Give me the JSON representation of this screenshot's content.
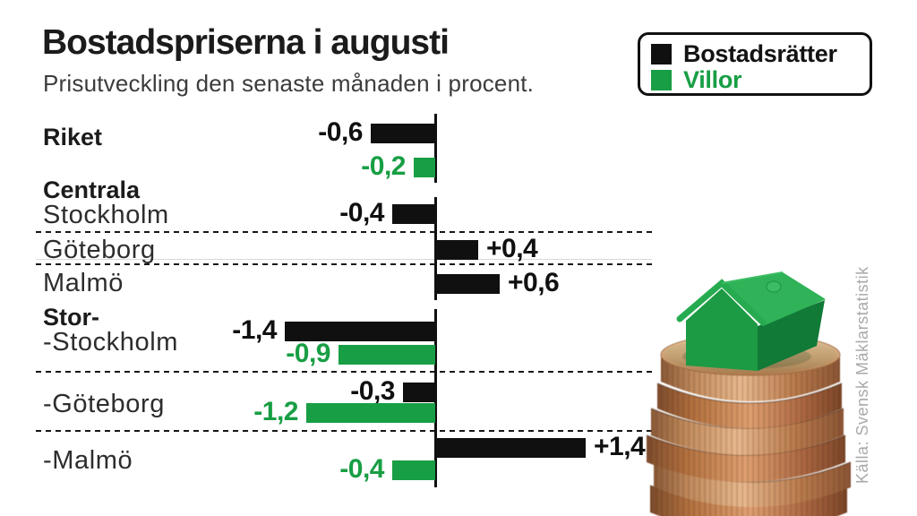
{
  "title": "Bostadspriserna i augusti",
  "subtitle": "Prisutveckling den senaste månaden i procent.",
  "legend": {
    "items": [
      {
        "label": "Bostadsrätter",
        "color": "#101010"
      },
      {
        "label": "Villor",
        "color": "#189e44"
      }
    ]
  },
  "source": "Källa: Svensk Mäklarstatistik",
  "illustration": "green toy house on a stack of copper coins",
  "chart_data": {
    "type": "bar",
    "orientation": "horizontal",
    "value_unit": "percent, change over last month",
    "xlim": [
      -1.5,
      1.5
    ],
    "grid": "dashed row separators",
    "legend_position": "top-right",
    "series": [
      {
        "name": "Bostadsrätter",
        "color": "#101010"
      },
      {
        "name": "Villor",
        "color": "#189e44"
      }
    ],
    "row_labels": [
      {
        "text": "Riket",
        "bold": true
      },
      {
        "text": "Centrala",
        "bold": true
      },
      {
        "text": "Stockholm",
        "bold": false
      },
      {
        "text": "Göteborg",
        "bold": false
      },
      {
        "text": "Malmö",
        "bold": false
      },
      {
        "text": "Stor-",
        "bold": true
      },
      {
        "text": "-Stockholm",
        "bold": false
      },
      {
        "text": "-Göteborg",
        "bold": false
      },
      {
        "text": "-Malmö",
        "bold": false
      }
    ],
    "bars": [
      {
        "row": "Riket",
        "series": "Bostadsrätter",
        "value": -0.6,
        "label": "-0,6"
      },
      {
        "row": "Riket",
        "series": "Villor",
        "value": -0.2,
        "label": "-0,2"
      },
      {
        "row": "Centrala Stockholm",
        "series": "Bostadsrätter",
        "value": -0.4,
        "label": "-0,4"
      },
      {
        "row": "Göteborg",
        "series": "Bostadsrätter",
        "value": 0.4,
        "label": "+0,4"
      },
      {
        "row": "Malmö",
        "series": "Bostadsrätter",
        "value": 0.6,
        "label": "+0,6"
      },
      {
        "row": "Stor-Stockholm",
        "series": "Bostadsrätter",
        "value": -1.4,
        "label": "-1,4"
      },
      {
        "row": "Stor-Stockholm",
        "series": "Villor",
        "value": -0.9,
        "label": "-0,9"
      },
      {
        "row": "Stor-Göteborg",
        "series": "Bostadsrätter",
        "value": -0.3,
        "label": "-0,3"
      },
      {
        "row": "Stor-Göteborg",
        "series": "Villor",
        "value": -1.2,
        "label": "-1,2"
      },
      {
        "row": "Stor-Malmö",
        "series": "Bostadsrätter",
        "value": 1.4,
        "label": "+1,4"
      },
      {
        "row": "Stor-Malmö",
        "series": "Villor",
        "value": -0.4,
        "label": "-0,4"
      }
    ]
  }
}
